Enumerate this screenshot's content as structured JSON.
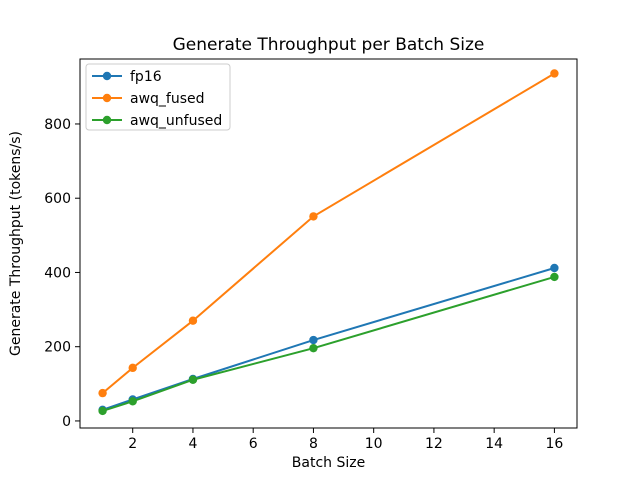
{
  "chart_data": {
    "type": "line",
    "title": "Generate Throughput per Batch Size",
    "xlabel": "Batch Size",
    "ylabel": "Generate Throughput (tokens/s)",
    "x": [
      1,
      2,
      4,
      8,
      16
    ],
    "series": [
      {
        "name": "fp16",
        "color": "#1f77b4",
        "values": [
          30,
          58,
          113,
          218,
          412
        ]
      },
      {
        "name": "awq_fused",
        "color": "#ff7f0e",
        "values": [
          75,
          143,
          270,
          551,
          936
        ]
      },
      {
        "name": "awq_unfused",
        "color": "#2ca02c",
        "values": [
          27,
          53,
          111,
          196,
          388
        ]
      }
    ],
    "xticks": [
      2,
      4,
      6,
      8,
      10,
      12,
      14,
      16
    ],
    "yticks": [
      0,
      200,
      400,
      600,
      800
    ],
    "xlim": [
      0.25,
      16.75
    ],
    "ylim": [
      -19,
      975
    ],
    "grid": false,
    "marker": "circle",
    "legend_position": "upper left",
    "colors": {
      "spine": "#000000",
      "background": "#ffffff",
      "legend_border": "#cccccc",
      "legend_background": "#ffffff"
    }
  }
}
